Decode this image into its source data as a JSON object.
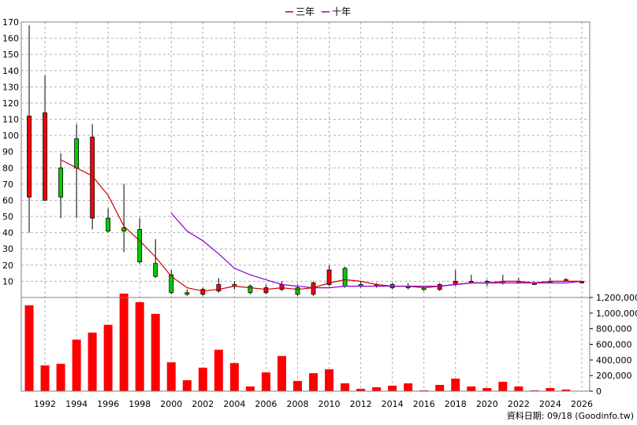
{
  "footer": {
    "source": "資料日期: 09/18 (Goodinfo.tw)"
  },
  "chart_data": {
    "type": "candlestick",
    "legend": [
      {
        "name": "三年",
        "color": "#cc0000"
      },
      {
        "name": "十年",
        "color": "#8800cc"
      }
    ],
    "x_ticks": [
      "1992",
      "1994",
      "1996",
      "1998",
      "2000",
      "2002",
      "2004",
      "2006",
      "2008",
      "2010",
      "2012",
      "2014",
      "2016",
      "2018",
      "2020",
      "2022",
      "2024",
      "2026"
    ],
    "price_ticks": [
      10,
      20,
      30,
      40,
      50,
      60,
      70,
      80,
      90,
      100,
      110,
      120,
      130,
      140,
      150,
      160,
      170
    ],
    "price_ylim": [
      0,
      170
    ],
    "volume_ticks": [
      "0",
      "200,000",
      "400,000",
      "600,000",
      "800,000",
      "1,000,000",
      "1,200,000"
    ],
    "volume_ylim": [
      0,
      1200000
    ],
    "candles": [
      {
        "year": 1991,
        "open": 62,
        "close": 112,
        "high": 168,
        "low": 40
      },
      {
        "year": 1992,
        "open": 60,
        "close": 114,
        "high": 137,
        "low": 60
      },
      {
        "year": 1993,
        "open": 80,
        "close": 62,
        "high": 89,
        "low": 49
      },
      {
        "year": 1994,
        "open": 98,
        "close": 80,
        "high": 107,
        "low": 49
      },
      {
        "year": 1995,
        "open": 49,
        "close": 99,
        "high": 107,
        "low": 42
      },
      {
        "year": 1996,
        "open": 49,
        "close": 41,
        "high": 55,
        "low": 40
      },
      {
        "year": 1997,
        "open": 43,
        "close": 41,
        "high": 70,
        "low": 28
      },
      {
        "year": 1998,
        "open": 42,
        "close": 22,
        "high": 49,
        "low": 21
      },
      {
        "year": 1999,
        "open": 21,
        "close": 13,
        "high": 36,
        "low": 12
      },
      {
        "year": 2000,
        "open": 14,
        "close": 3,
        "high": 17,
        "low": 2
      },
      {
        "year": 2001,
        "open": 3,
        "close": 2,
        "high": 5,
        "low": 1
      },
      {
        "year": 2002,
        "open": 2,
        "close": 5,
        "high": 6,
        "low": 1
      },
      {
        "year": 2003,
        "open": 4,
        "close": 8,
        "high": 12,
        "low": 3
      },
      {
        "year": 2004,
        "open": 8,
        "close": 7,
        "high": 10,
        "low": 5
      },
      {
        "year": 2005,
        "open": 7,
        "close": 3,
        "high": 8,
        "low": 2
      },
      {
        "year": 2006,
        "open": 3,
        "close": 6,
        "high": 8,
        "low": 2
      },
      {
        "year": 2007,
        "open": 5,
        "close": 8,
        "high": 10,
        "low": 4
      },
      {
        "year": 2008,
        "open": 6,
        "close": 2,
        "high": 8,
        "low": 1
      },
      {
        "year": 2009,
        "open": 2,
        "close": 9,
        "high": 10,
        "low": 1
      },
      {
        "year": 2010,
        "open": 8,
        "close": 17,
        "high": 20,
        "low": 7
      },
      {
        "year": 2011,
        "open": 18,
        "close": 7,
        "high": 19,
        "low": 6
      },
      {
        "year": 2012,
        "open": 8,
        "close": 7,
        "high": 10,
        "low": 6
      },
      {
        "year": 2013,
        "open": 7,
        "close": 8,
        "high": 9,
        "low": 6
      },
      {
        "year": 2014,
        "open": 8,
        "close": 6,
        "high": 9,
        "low": 5
      },
      {
        "year": 2015,
        "open": 7,
        "close": 6,
        "high": 9,
        "low": 5
      },
      {
        "year": 2016,
        "open": 6,
        "close": 5,
        "high": 7,
        "low": 4
      },
      {
        "year": 2017,
        "open": 5,
        "close": 8,
        "high": 9,
        "low": 4
      },
      {
        "year": 2018,
        "open": 8,
        "close": 10,
        "high": 17,
        "low": 7
      },
      {
        "year": 2019,
        "open": 10,
        "close": 10,
        "high": 14,
        "low": 9
      },
      {
        "year": 2020,
        "open": 10,
        "close": 9,
        "high": 11,
        "low": 7
      },
      {
        "year": 2021,
        "open": 9,
        "close": 10,
        "high": 14,
        "low": 8
      },
      {
        "year": 2022,
        "open": 10,
        "close": 10,
        "high": 12,
        "low": 9
      },
      {
        "year": 2023,
        "open": 9,
        "close": 9,
        "high": 10,
        "low": 8
      },
      {
        "year": 2024,
        "open": 9,
        "close": 10,
        "high": 12,
        "low": 9
      },
      {
        "year": 2025,
        "open": 10,
        "close": 11,
        "high": 12,
        "low": 10
      },
      {
        "year": 2026,
        "open": 10,
        "close": 10,
        "high": 10,
        "low": 9
      }
    ],
    "ma3": [
      {
        "year": 1993,
        "value": 85
      },
      {
        "year": 1994,
        "value": 80
      },
      {
        "year": 1995,
        "value": 75
      },
      {
        "year": 1996,
        "value": 63
      },
      {
        "year": 1997,
        "value": 44
      },
      {
        "year": 1998,
        "value": 35
      },
      {
        "year": 1999,
        "value": 25
      },
      {
        "year": 2000,
        "value": 13
      },
      {
        "year": 2001,
        "value": 6
      },
      {
        "year": 2002,
        "value": 4
      },
      {
        "year": 2003,
        "value": 5
      },
      {
        "year": 2004,
        "value": 7
      },
      {
        "year": 2005,
        "value": 6
      },
      {
        "year": 2006,
        "value": 5
      },
      {
        "year": 2007,
        "value": 6
      },
      {
        "year": 2008,
        "value": 5
      },
      {
        "year": 2009,
        "value": 6
      },
      {
        "year": 2010,
        "value": 9
      },
      {
        "year": 2011,
        "value": 11
      },
      {
        "year": 2012,
        "value": 10
      },
      {
        "year": 2013,
        "value": 8
      },
      {
        "year": 2014,
        "value": 7
      },
      {
        "year": 2015,
        "value": 7
      },
      {
        "year": 2016,
        "value": 6
      },
      {
        "year": 2017,
        "value": 7
      },
      {
        "year": 2018,
        "value": 8
      },
      {
        "year": 2019,
        "value": 9
      },
      {
        "year": 2020,
        "value": 9
      },
      {
        "year": 2021,
        "value": 10
      },
      {
        "year": 2022,
        "value": 10
      },
      {
        "year": 2023,
        "value": 9
      },
      {
        "year": 2024,
        "value": 10
      },
      {
        "year": 2025,
        "value": 10
      },
      {
        "year": 2026,
        "value": 10
      }
    ],
    "ma10": [
      {
        "year": 2000,
        "value": 52
      },
      {
        "year": 2001,
        "value": 41
      },
      {
        "year": 2002,
        "value": 35
      },
      {
        "year": 2003,
        "value": 27
      },
      {
        "year": 2004,
        "value": 18
      },
      {
        "year": 2005,
        "value": 14
      },
      {
        "year": 2006,
        "value": 11
      },
      {
        "year": 2007,
        "value": 8
      },
      {
        "year": 2008,
        "value": 7
      },
      {
        "year": 2009,
        "value": 6
      },
      {
        "year": 2010,
        "value": 6
      },
      {
        "year": 2011,
        "value": 7
      },
      {
        "year": 2012,
        "value": 7
      },
      {
        "year": 2013,
        "value": 7
      },
      {
        "year": 2014,
        "value": 7
      },
      {
        "year": 2015,
        "value": 7
      },
      {
        "year": 2016,
        "value": 7
      },
      {
        "year": 2017,
        "value": 7
      },
      {
        "year": 2018,
        "value": 8
      },
      {
        "year": 2019,
        "value": 9
      },
      {
        "year": 2020,
        "value": 9
      },
      {
        "year": 2021,
        "value": 9
      },
      {
        "year": 2022,
        "value": 9
      },
      {
        "year": 2023,
        "value": 9
      },
      {
        "year": 2024,
        "value": 9
      },
      {
        "year": 2025,
        "value": 9
      },
      {
        "year": 2026,
        "value": 10
      }
    ],
    "volumes": [
      {
        "year": 1991,
        "value": 1100000
      },
      {
        "year": 1992,
        "value": 330000
      },
      {
        "year": 1993,
        "value": 350000
      },
      {
        "year": 1994,
        "value": 660000
      },
      {
        "year": 1995,
        "value": 750000
      },
      {
        "year": 1996,
        "value": 850000
      },
      {
        "year": 1997,
        "value": 1250000
      },
      {
        "year": 1998,
        "value": 1140000
      },
      {
        "year": 1999,
        "value": 990000
      },
      {
        "year": 2000,
        "value": 370000
      },
      {
        "year": 2001,
        "value": 140000
      },
      {
        "year": 2002,
        "value": 300000
      },
      {
        "year": 2003,
        "value": 530000
      },
      {
        "year": 2004,
        "value": 360000
      },
      {
        "year": 2005,
        "value": 60000
      },
      {
        "year": 2006,
        "value": 240000
      },
      {
        "year": 2007,
        "value": 450000
      },
      {
        "year": 2008,
        "value": 130000
      },
      {
        "year": 2009,
        "value": 230000
      },
      {
        "year": 2010,
        "value": 280000
      },
      {
        "year": 2011,
        "value": 100000
      },
      {
        "year": 2012,
        "value": 30000
      },
      {
        "year": 2013,
        "value": 50000
      },
      {
        "year": 2014,
        "value": 70000
      },
      {
        "year": 2015,
        "value": 100000
      },
      {
        "year": 2016,
        "value": 10000
      },
      {
        "year": 2017,
        "value": 80000
      },
      {
        "year": 2018,
        "value": 160000
      },
      {
        "year": 2019,
        "value": 60000
      },
      {
        "year": 2020,
        "value": 40000
      },
      {
        "year": 2021,
        "value": 120000
      },
      {
        "year": 2022,
        "value": 60000
      },
      {
        "year": 2023,
        "value": 10000
      },
      {
        "year": 2024,
        "value": 40000
      },
      {
        "year": 2025,
        "value": 20000
      },
      {
        "year": 2026,
        "value": 5000
      }
    ]
  }
}
